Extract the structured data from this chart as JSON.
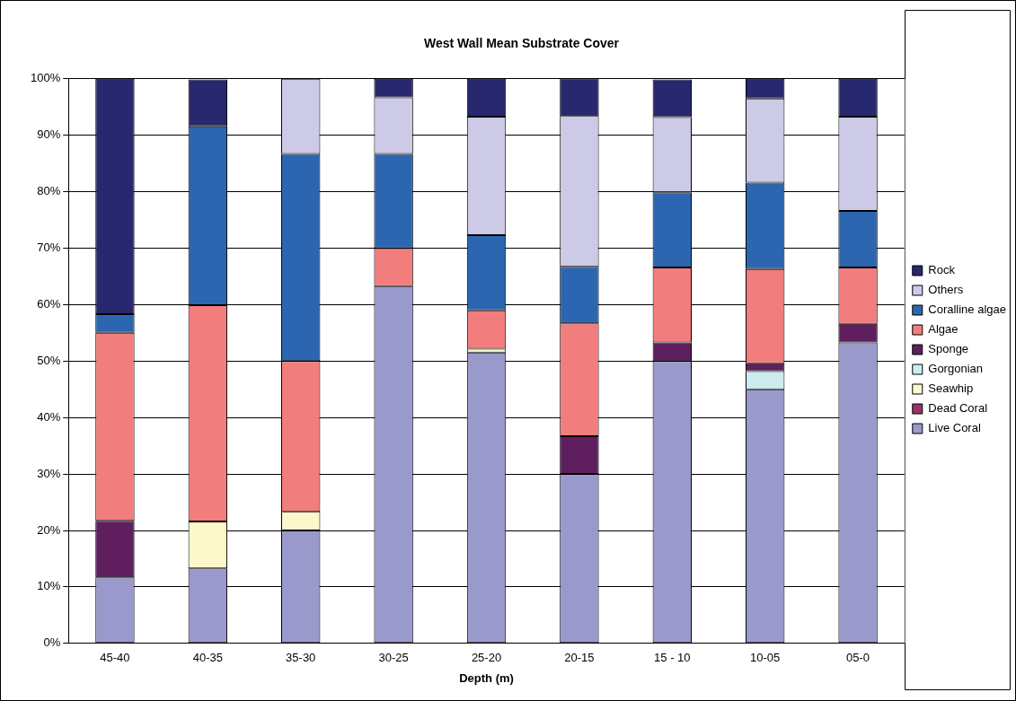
{
  "chart_data": {
    "type": "bar",
    "title": "West Wall Mean Substrate Cover",
    "xlabel": "Depth (m)",
    "stacked": true,
    "categories": [
      "45-40",
      "40-35",
      "35-30",
      "30-25",
      "25-20",
      "20-15",
      "15 - 10",
      "10-05",
      "05-0"
    ],
    "series": [
      {
        "name": "Live Coral",
        "color": "#9999cc",
        "values": [
          11.7,
          13.3,
          20,
          63.3,
          51.5,
          30,
          50,
          45,
          53.3
        ]
      },
      {
        "name": "Dead Coral",
        "color": "#993366",
        "values": [
          0,
          0,
          0,
          0,
          0,
          0,
          0,
          0,
          0
        ]
      },
      {
        "name": "Seawhip",
        "color": "#fcf8cc",
        "values": [
          0,
          8.3,
          3.3,
          0,
          0.7,
          0,
          0,
          0,
          0
        ]
      },
      {
        "name": "Gorgonian",
        "color": "#cdecf0",
        "values": [
          0,
          0,
          0,
          0,
          0,
          0,
          0,
          3.2,
          0
        ]
      },
      {
        "name": "Sponge",
        "color": "#5f1f5f",
        "values": [
          10,
          0,
          0,
          0,
          0,
          6.7,
          3.3,
          1.4,
          3.3
        ]
      },
      {
        "name": "Algae",
        "color": "#f27d7d",
        "values": [
          33.3,
          38.3,
          26.7,
          6.7,
          6.8,
          20,
          13.3,
          16.7,
          10
        ]
      },
      {
        "name": "Coralline algae",
        "color": "#2d66b0",
        "values": [
          3.3,
          31.7,
          36.7,
          16.7,
          13.3,
          10,
          13.3,
          15.3,
          10
        ]
      },
      {
        "name": "Others",
        "color": "#cccae6",
        "values": [
          0,
          0,
          13.3,
          10,
          21,
          26.7,
          13.3,
          14.9,
          16.7
        ]
      },
      {
        "name": "Rock",
        "color": "#28286e",
        "values": [
          41.7,
          8.3,
          0,
          3.3,
          6.7,
          6.7,
          6.7,
          3.5,
          6.7
        ]
      }
    ],
    "ylim": [
      0,
      100
    ],
    "yticks": [
      {
        "value": 0,
        "label": "0%"
      },
      {
        "value": 10,
        "label": "10%"
      },
      {
        "value": 20,
        "label": "20%"
      },
      {
        "value": 30,
        "label": "30%"
      },
      {
        "value": 40,
        "label": "40%"
      },
      {
        "value": 50,
        "label": "50%"
      },
      {
        "value": 60,
        "label": "60%"
      },
      {
        "value": 70,
        "label": "70%"
      },
      {
        "value": 80,
        "label": "80%"
      },
      {
        "value": 90,
        "label": "90%"
      },
      {
        "value": 100,
        "label": "100%"
      }
    ],
    "grid": "y",
    "legend": "right"
  }
}
